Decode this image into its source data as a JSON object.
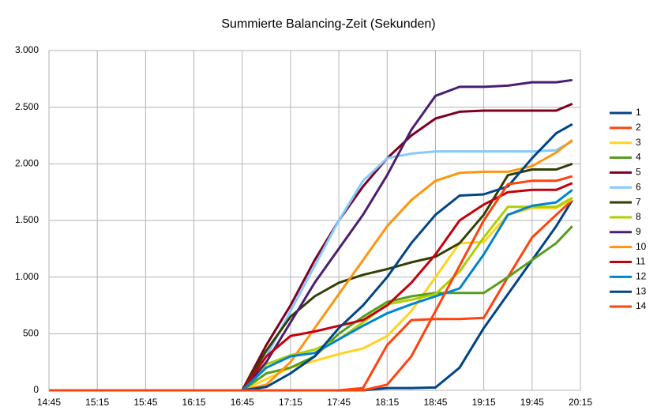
{
  "chart_data": {
    "type": "line",
    "title": "Summierte Balancing-Zeit (Sekunden)",
    "x": [
      "14:45",
      "16:45",
      "17:00",
      "17:15",
      "17:30",
      "17:45",
      "18:00",
      "18:15",
      "18:30",
      "18:45",
      "19:00",
      "19:15",
      "19:30",
      "19:45",
      "20:00",
      "20:10"
    ],
    "xlim": [
      "14:45",
      "20:15"
    ],
    "xticks": [
      "14:45",
      "15:15",
      "15:45",
      "16:15",
      "16:45",
      "17:15",
      "17:45",
      "18:15",
      "18:45",
      "19:15",
      "19:45",
      "20:15"
    ],
    "ylim": [
      0,
      3000
    ],
    "yticks": [
      0,
      500,
      {
        "value": 1000,
        "label": "1.000"
      },
      {
        "value": 1500,
        "label": "1.500"
      },
      {
        "value": 2000,
        "label": "2.000"
      },
      {
        "value": 2500,
        "label": "2.500"
      },
      {
        "value": 3000,
        "label": "3.000"
      }
    ],
    "grid": true,
    "legend": "right",
    "series": [
      {
        "name": "1",
        "color": "#004586",
        "values": [
          0,
          0,
          0,
          0,
          0,
          0,
          0,
          20,
          20,
          25,
          200,
          550,
          850,
          1150,
          1450,
          1680
        ]
      },
      {
        "name": "2",
        "color": "#ff420e",
        "values": [
          0,
          0,
          0,
          0,
          0,
          0,
          20,
          400,
          620,
          630,
          630,
          640,
          1000,
          1350,
          1550,
          1680
        ]
      },
      {
        "name": "3",
        "color": "#ffd320",
        "values": [
          0,
          0,
          100,
          200,
          260,
          320,
          370,
          480,
          700,
          1000,
          1300,
          1310,
          1550,
          1610,
          1610,
          1690
        ]
      },
      {
        "name": "4",
        "color": "#579d1c",
        "values": [
          0,
          0,
          150,
          200,
          300,
          500,
          650,
          780,
          830,
          860,
          860,
          860,
          1000,
          1150,
          1300,
          1450
        ]
      },
      {
        "name": "5",
        "color": "#7e0021",
        "values": [
          0,
          0,
          400,
          750,
          1150,
          1500,
          1800,
          2050,
          2250,
          2400,
          2460,
          2470,
          2470,
          2470,
          2470,
          2530
        ]
      },
      {
        "name": "6",
        "color": "#83caff",
        "values": [
          0,
          0,
          300,
          700,
          1100,
          1500,
          1850,
          2050,
          2090,
          2110,
          2110,
          2110,
          2110,
          2110,
          2120,
          2200
        ]
      },
      {
        "name": "7",
        "color": "#314004",
        "values": [
          0,
          0,
          350,
          650,
          830,
          950,
          1020,
          1070,
          1130,
          1180,
          1300,
          1550,
          1900,
          1950,
          1950,
          2000
        ]
      },
      {
        "name": "8",
        "color": "#aecf00",
        "values": [
          0,
          0,
          230,
          310,
          360,
          450,
          600,
          760,
          800,
          850,
          1050,
          1350,
          1620,
          1620,
          1620,
          1700
        ]
      },
      {
        "name": "9",
        "color": "#4b1f6f",
        "values": [
          0,
          0,
          250,
          600,
          950,
          1250,
          1550,
          1900,
          2300,
          2600,
          2680,
          2680,
          2690,
          2720,
          2720,
          2740
        ]
      },
      {
        "name": "10",
        "color": "#ff950e",
        "values": [
          0,
          0,
          50,
          250,
          550,
          850,
          1150,
          1450,
          1680,
          1850,
          1920,
          1930,
          1930,
          1980,
          2100,
          2210
        ]
      },
      {
        "name": "11",
        "color": "#c5000b",
        "values": [
          0,
          0,
          300,
          480,
          520,
          570,
          620,
          750,
          950,
          1200,
          1500,
          1640,
          1750,
          1770,
          1770,
          1830
        ]
      },
      {
        "name": "12",
        "color": "#0084d1",
        "values": [
          0,
          0,
          200,
          300,
          330,
          450,
          570,
          680,
          760,
          830,
          900,
          1200,
          1550,
          1630,
          1660,
          1770
        ]
      },
      {
        "name": "13",
        "color": "#004586",
        "values": [
          0,
          0,
          30,
          150,
          300,
          550,
          750,
          1000,
          1300,
          1550,
          1720,
          1730,
          1800,
          2050,
          2270,
          2350
        ]
      },
      {
        "name": "14",
        "color": "#ff420e",
        "values": [
          0,
          0,
          0,
          0,
          0,
          0,
          0,
          50,
          300,
          700,
          1100,
          1500,
          1820,
          1850,
          1850,
          1890
        ]
      }
    ]
  }
}
